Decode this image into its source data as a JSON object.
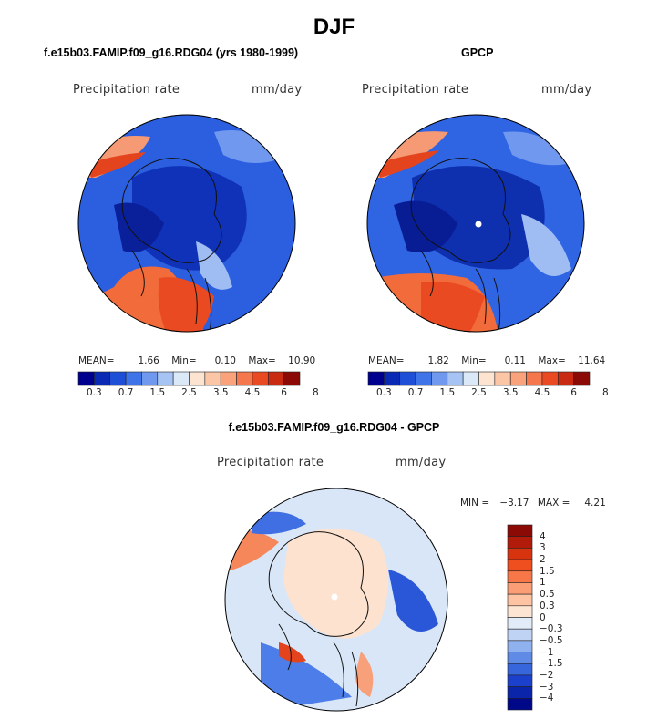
{
  "figure": {
    "title": "DJF"
  },
  "chart_data": [
    {
      "type": "heatmap",
      "projection": "north-polar-stereographic",
      "title": "f.e15b03.FAMIP.f09_g16.RDG04 (yrs 1980-1999)",
      "field_label": "Precipitation rate",
      "units": "mm/day",
      "stats": {
        "mean_label": "MEAN=",
        "mean": "1.66",
        "min_label": "Min=",
        "min": "0.10",
        "max_label": "Max=",
        "max": "10.90"
      },
      "colorbar": {
        "levels": [
          "0.3",
          "0.7",
          "1.5",
          "2.5",
          "3.5",
          "4.5",
          "6",
          "8"
        ],
        "colors": [
          "#00008f",
          "#0a2ab5",
          "#1f4fd6",
          "#3f74e9",
          "#6f98ee",
          "#a6c3f3",
          "#dbe8f8",
          "#fde4d0",
          "#fbc6a6",
          "#f9a27b",
          "#f4774d",
          "#e94a22",
          "#c82a12",
          "#8c0a05"
        ]
      }
    },
    {
      "type": "heatmap",
      "projection": "north-polar-stereographic",
      "title": "GPCP",
      "field_label": "Precipitation rate",
      "units": "mm/day",
      "stats": {
        "mean_label": "MEAN=",
        "mean": "1.82",
        "min_label": "Min=",
        "min": "0.11",
        "max_label": "Max=",
        "max": "11.64"
      },
      "colorbar": {
        "levels": [
          "0.3",
          "0.7",
          "1.5",
          "2.5",
          "3.5",
          "4.5",
          "6",
          "8"
        ],
        "colors": [
          "#00008f",
          "#0a2ab5",
          "#1f4fd6",
          "#3f74e9",
          "#6f98ee",
          "#a6c3f3",
          "#dbe8f8",
          "#fde4d0",
          "#fbc6a6",
          "#f9a27b",
          "#f4774d",
          "#e94a22",
          "#c82a12",
          "#8c0a05"
        ]
      }
    },
    {
      "type": "heatmap",
      "projection": "north-polar-stereographic",
      "title": "f.e15b03.FAMIP.f09_g16.RDG04 - GPCP",
      "field_label": "Precipitation rate",
      "units": "mm/day",
      "stats": {
        "min_label": "MIN =",
        "min": "−3.17",
        "max_label": "MAX =",
        "max": "4.21"
      },
      "colorbar": {
        "levels": [
          "4",
          "3",
          "2",
          "1.5",
          "1",
          "0.5",
          "0.3",
          "0",
          "−0.3",
          "−0.5",
          "−1",
          "−1.5",
          "−2",
          "−3",
          "−4"
        ],
        "colors": [
          "#8c0a05",
          "#b21a0a",
          "#d8330f",
          "#ef4f1f",
          "#f77748",
          "#fb9e76",
          "#fdc3a3",
          "#fde5d3",
          "#e2ecf8",
          "#bfd3f4",
          "#8fb1ee",
          "#5f8be6",
          "#3765dc",
          "#1a40cc",
          "#0a24aa",
          "#00088a"
        ]
      }
    }
  ]
}
